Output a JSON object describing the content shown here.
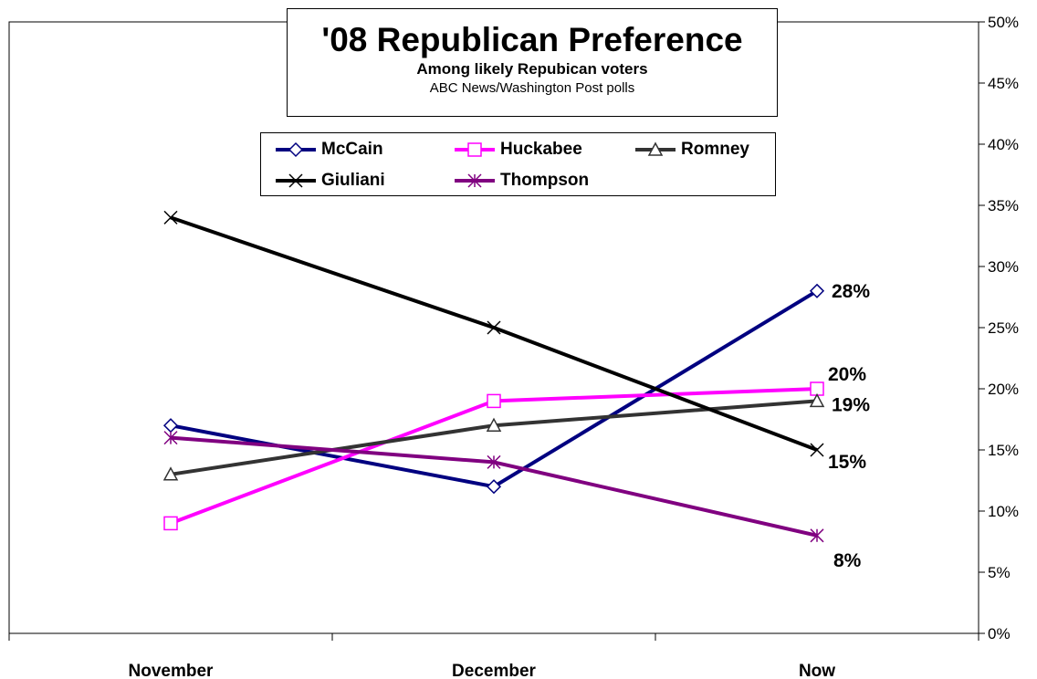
{
  "chart_data": {
    "type": "line",
    "title": "'08 Republican Preference",
    "subtitle": "Among likely Repubican voters",
    "source": "ABC News/Washington Post polls",
    "categories": [
      "November",
      "December",
      "Now"
    ],
    "ylim": [
      0,
      50
    ],
    "y_ticks": [
      "0%",
      "5%",
      "10%",
      "15%",
      "20%",
      "25%",
      "30%",
      "35%",
      "40%",
      "45%",
      "50%"
    ],
    "y_axis_side": "right",
    "grid": false,
    "legend_position": "top-center",
    "series": [
      {
        "name": "McCain",
        "values": [
          17,
          12,
          28
        ],
        "color": "#000080",
        "marker": "diamond",
        "end_label": "28%"
      },
      {
        "name": "Huckabee",
        "values": [
          9,
          19,
          20
        ],
        "color": "#ff00ff",
        "marker": "square",
        "end_label": "20%"
      },
      {
        "name": "Romney",
        "values": [
          13,
          17,
          19
        ],
        "color": "#333333",
        "marker": "triangle",
        "end_label": "19%"
      },
      {
        "name": "Giuliani",
        "values": [
          34,
          25,
          15
        ],
        "color": "#000000",
        "marker": "x",
        "end_label": "15%"
      },
      {
        "name": "Thompson",
        "values": [
          16,
          14,
          8
        ],
        "color": "#800080",
        "marker": "star",
        "end_label": "8%"
      }
    ]
  }
}
